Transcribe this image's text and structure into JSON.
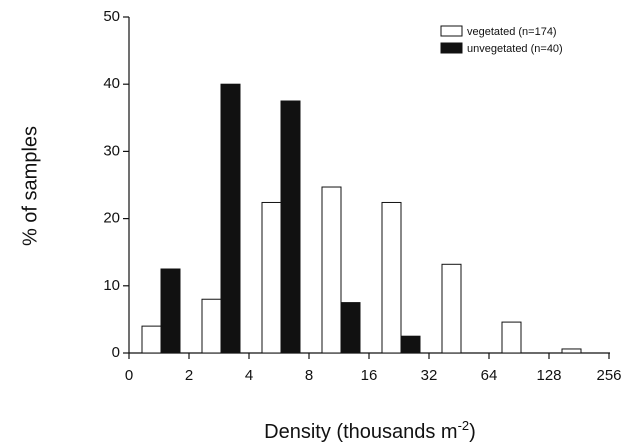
{
  "chart_data": {
    "type": "bar",
    "title": "",
    "xlabel": "Density (thousands m",
    "xlabel_superscript": "-2",
    "xlabel_suffix": ")",
    "ylabel": "% of samples",
    "ylim": [
      0,
      50
    ],
    "yticks": [
      "0",
      "10",
      "20",
      "30",
      "40",
      "50"
    ],
    "x_tick_labels": [
      "0",
      "2",
      "4",
      "8",
      "16",
      "32",
      "64",
      "128",
      "256"
    ],
    "bin_ranges": [
      "0-2",
      "2-4",
      "4-8",
      "8-16",
      "16-32",
      "32-64",
      "64-128",
      "128-256"
    ],
    "series": [
      {
        "name": "vegetated (n=174)",
        "fill": "#ffffff",
        "values": [
          4.0,
          8.0,
          22.4,
          24.7,
          22.4,
          13.2,
          4.6,
          0.6
        ]
      },
      {
        "name": "unvegetated (n=40)",
        "fill": "#111111",
        "values": [
          12.5,
          40.0,
          37.5,
          7.5,
          2.5,
          0,
          0,
          0
        ]
      }
    ],
    "legend_position": "top-right",
    "grid": false
  }
}
